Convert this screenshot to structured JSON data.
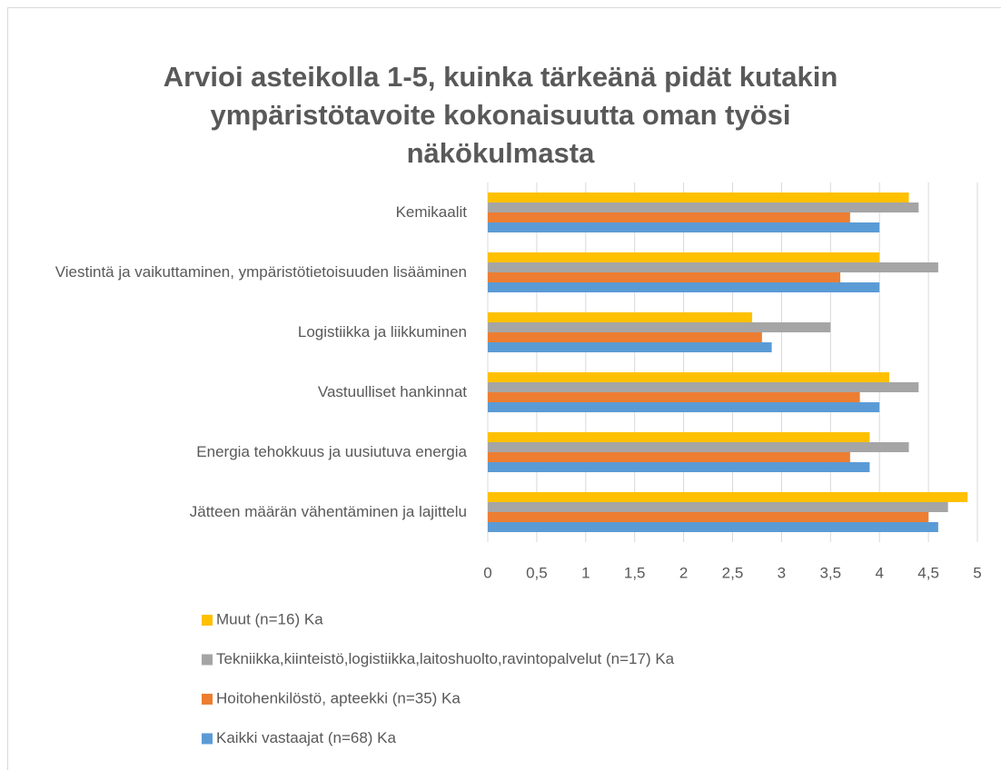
{
  "chart_data": {
    "type": "hbar",
    "title": "Arvioi asteikolla 1-5, kuinka tärkeänä pidät kutakin ympäristötavoite kokonaisuutta oman työsi näkökulmasta",
    "categories": [
      "Kemikaalit",
      "Viestintä ja vaikuttaminen, ympäristötietoisuuden lisääminen",
      "Logistiikka ja liikkuminen",
      "Vastuulliset hankinnat",
      "Energia tehokkuus ja uusiutuva energia",
      "Jätteen määrän vähentäminen ja lajittelu"
    ],
    "series": [
      {
        "name": "Muut (n=16) Ka",
        "color": "#ffc000",
        "values": [
          4.3,
          4.0,
          2.7,
          4.1,
          3.9,
          4.9
        ]
      },
      {
        "name": "Tekniikka,kiinteistö,logistiikka,laitoshuolto,ravintopalvelut (n=17) Ka",
        "color": "#a5a5a5",
        "values": [
          4.4,
          4.6,
          3.5,
          4.4,
          4.3,
          4.7
        ]
      },
      {
        "name": "Hoitohenkilöstö, apteekki (n=35) Ka",
        "color": "#ed7d31",
        "values": [
          3.7,
          3.6,
          2.8,
          3.8,
          3.7,
          4.5
        ]
      },
      {
        "name": "Kaikki vastaajat (n=68) Ka",
        "color": "#5b9bd5",
        "values": [
          4.0,
          4.0,
          2.9,
          4.0,
          3.9,
          4.6
        ]
      }
    ],
    "xlim": [
      0,
      5
    ],
    "xticks": [
      0,
      {
        "value": 0.5,
        "label": "0,5"
      },
      1,
      {
        "value": 1.5,
        "label": "1,5"
      },
      2,
      {
        "value": 2.5,
        "label": "2,5"
      },
      3,
      {
        "value": 3.5,
        "label": "3,5"
      },
      4,
      {
        "value": 4.5,
        "label": "4,5"
      },
      5
    ],
    "grid": true,
    "legend": "bottom"
  }
}
